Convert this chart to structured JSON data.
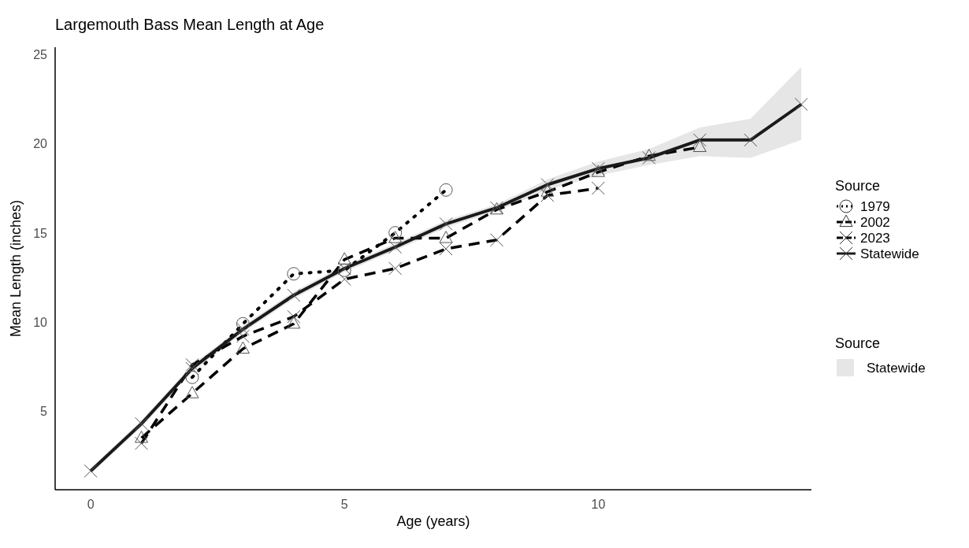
{
  "chart_data": {
    "type": "line",
    "title": "Largemouth Bass Mean Length at Age",
    "xlabel": "Age (years)",
    "ylabel": "Mean Length (inches)",
    "legend_title": "Source",
    "legend": "right",
    "grid": false,
    "xlim": [
      -0.7,
      14.2
    ],
    "ylim": [
      0.6,
      25.4
    ],
    "xticks": [
      0,
      5,
      10
    ],
    "yticks": [
      5,
      10,
      15,
      20,
      25
    ],
    "series": [
      {
        "name": "1979",
        "color": "#000000",
        "marker": "circle",
        "line_style": "dotted",
        "x": [
          2,
          3,
          4,
          5,
          6,
          7
        ],
        "values": [
          6.9,
          9.9,
          12.7,
          12.9,
          15.0,
          17.4
        ]
      },
      {
        "name": "2002",
        "color": "#000000",
        "marker": "triangle",
        "line_style": "dashed",
        "x": [
          1,
          2,
          3,
          4,
          5,
          6,
          7,
          8,
          9,
          10,
          11,
          12
        ],
        "values": [
          3.5,
          6.0,
          8.5,
          9.9,
          13.5,
          14.7,
          14.7,
          16.3,
          17.3,
          18.4,
          19.3,
          19.8
        ]
      },
      {
        "name": "2023",
        "color": "#000000",
        "marker": "cross",
        "line_style": "dashed",
        "x": [
          1,
          2,
          3,
          4,
          5,
          6,
          7,
          8,
          9,
          10
        ],
        "values": [
          3.2,
          7.6,
          9.2,
          10.3,
          12.4,
          13.0,
          14.1,
          14.6,
          17.1,
          17.5
        ]
      },
      {
        "name": "Statewide",
        "color": "#1a1a1a",
        "marker": "cross",
        "line_style": "solid",
        "x": [
          0,
          1,
          2,
          3,
          4,
          5,
          6,
          7,
          8,
          9,
          10,
          11,
          12,
          13,
          14
        ],
        "values": [
          1.65,
          4.3,
          7.4,
          9.6,
          11.5,
          13.0,
          14.2,
          15.5,
          16.4,
          17.7,
          18.6,
          19.2,
          20.2,
          20.2,
          22.2
        ],
        "lower": [
          1.5,
          4.1,
          7.2,
          9.4,
          11.3,
          12.8,
          14.0,
          15.3,
          16.2,
          17.4,
          18.2,
          18.8,
          19.3,
          19.2,
          20.2
        ],
        "upper": [
          1.8,
          4.5,
          7.6,
          9.8,
          11.7,
          13.2,
          14.4,
          15.7,
          16.6,
          18.0,
          19.0,
          19.7,
          20.9,
          21.4,
          24.3
        ]
      }
    ]
  }
}
